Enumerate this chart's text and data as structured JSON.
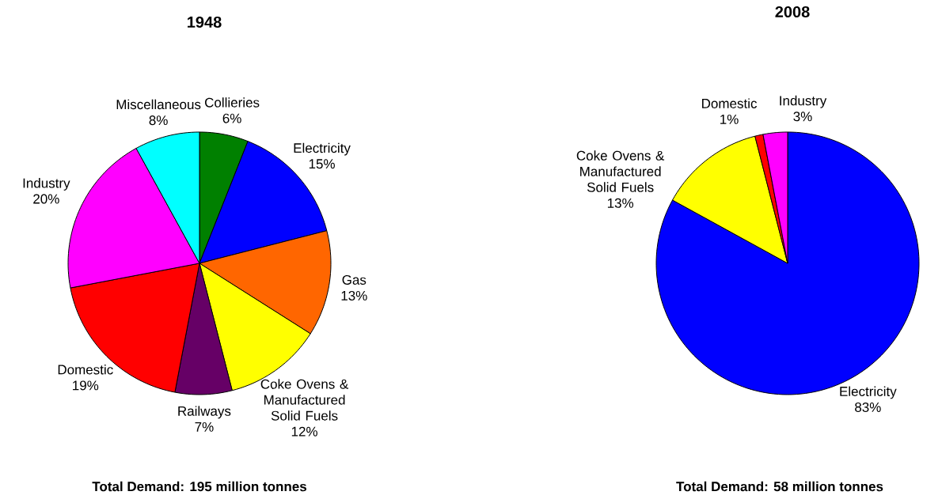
{
  "chart_data": [
    {
      "type": "pie",
      "title": "1948",
      "categories": [
        "Collieries",
        "Electricity",
        "Gas",
        "Coke Ovens & Manufactured Solid Fuels",
        "Railways",
        "Domestic",
        "Industry",
        "Miscellaneous"
      ],
      "values": [
        6,
        15,
        13,
        12,
        7,
        19,
        20,
        8
      ],
      "colors": [
        "#008000",
        "#0000ff",
        "#ff6600",
        "#ffff00",
        "#660066",
        "#ff0000",
        "#ff00ff",
        "#00ffff"
      ],
      "value_labels": [
        "6%",
        "15%",
        "13%",
        "12%",
        "7%",
        "19%",
        "20%",
        "8%"
      ],
      "annotations": [
        "Total Demand: 195 million tonnes"
      ]
    },
    {
      "type": "pie",
      "title": "2008",
      "categories": [
        "Electricity",
        "Coke Ovens & Manufactured Solid Fuels",
        "Domestic",
        "Industry"
      ],
      "values": [
        83,
        13,
        1,
        3
      ],
      "colors": [
        "#0000ff",
        "#ffff00",
        "#ff0000",
        "#ff00ff"
      ],
      "value_labels": [
        "83%",
        "13%",
        "1%",
        "3%"
      ],
      "annotations": [
        "Total Demand: 58 million tonnes"
      ]
    }
  ]
}
